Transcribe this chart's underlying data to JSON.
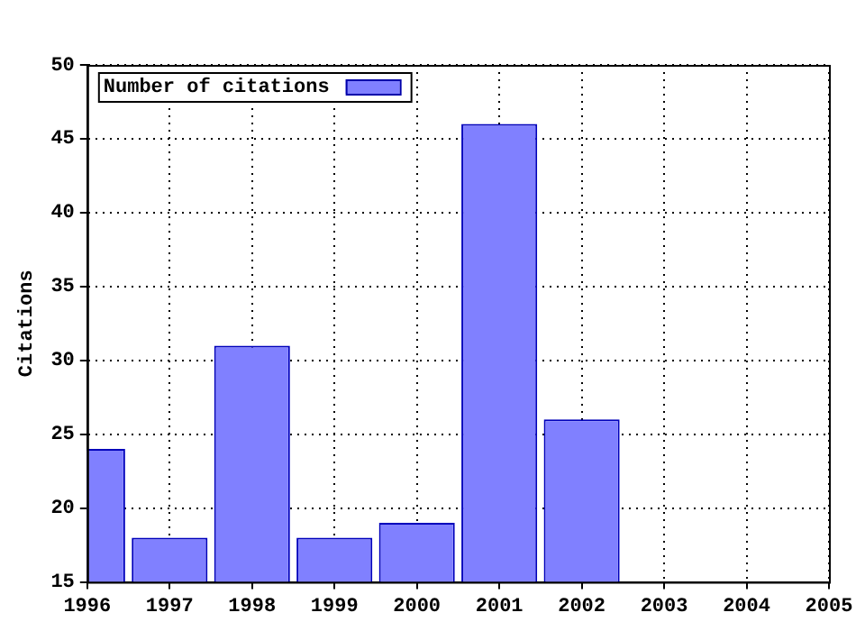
{
  "chart_data": {
    "type": "bar",
    "ylabel": "Citations",
    "x": [
      1996,
      1997,
      1998,
      1999,
      2000,
      2001,
      2002
    ],
    "series": [
      {
        "name": "Number of citations",
        "color": "#8080ff",
        "values": [
          24,
          18,
          31,
          18,
          19,
          46,
          26
        ]
      }
    ],
    "xlim": [
      1996,
      2005
    ],
    "xticks": [
      1996,
      1997,
      1998,
      1999,
      2000,
      2001,
      2002,
      2003,
      2004,
      2005
    ],
    "ylim": [
      15,
      50
    ],
    "yticks": [
      15,
      20,
      25,
      30,
      35,
      40,
      45,
      50
    ],
    "grid": true,
    "legend": "top left"
  }
}
